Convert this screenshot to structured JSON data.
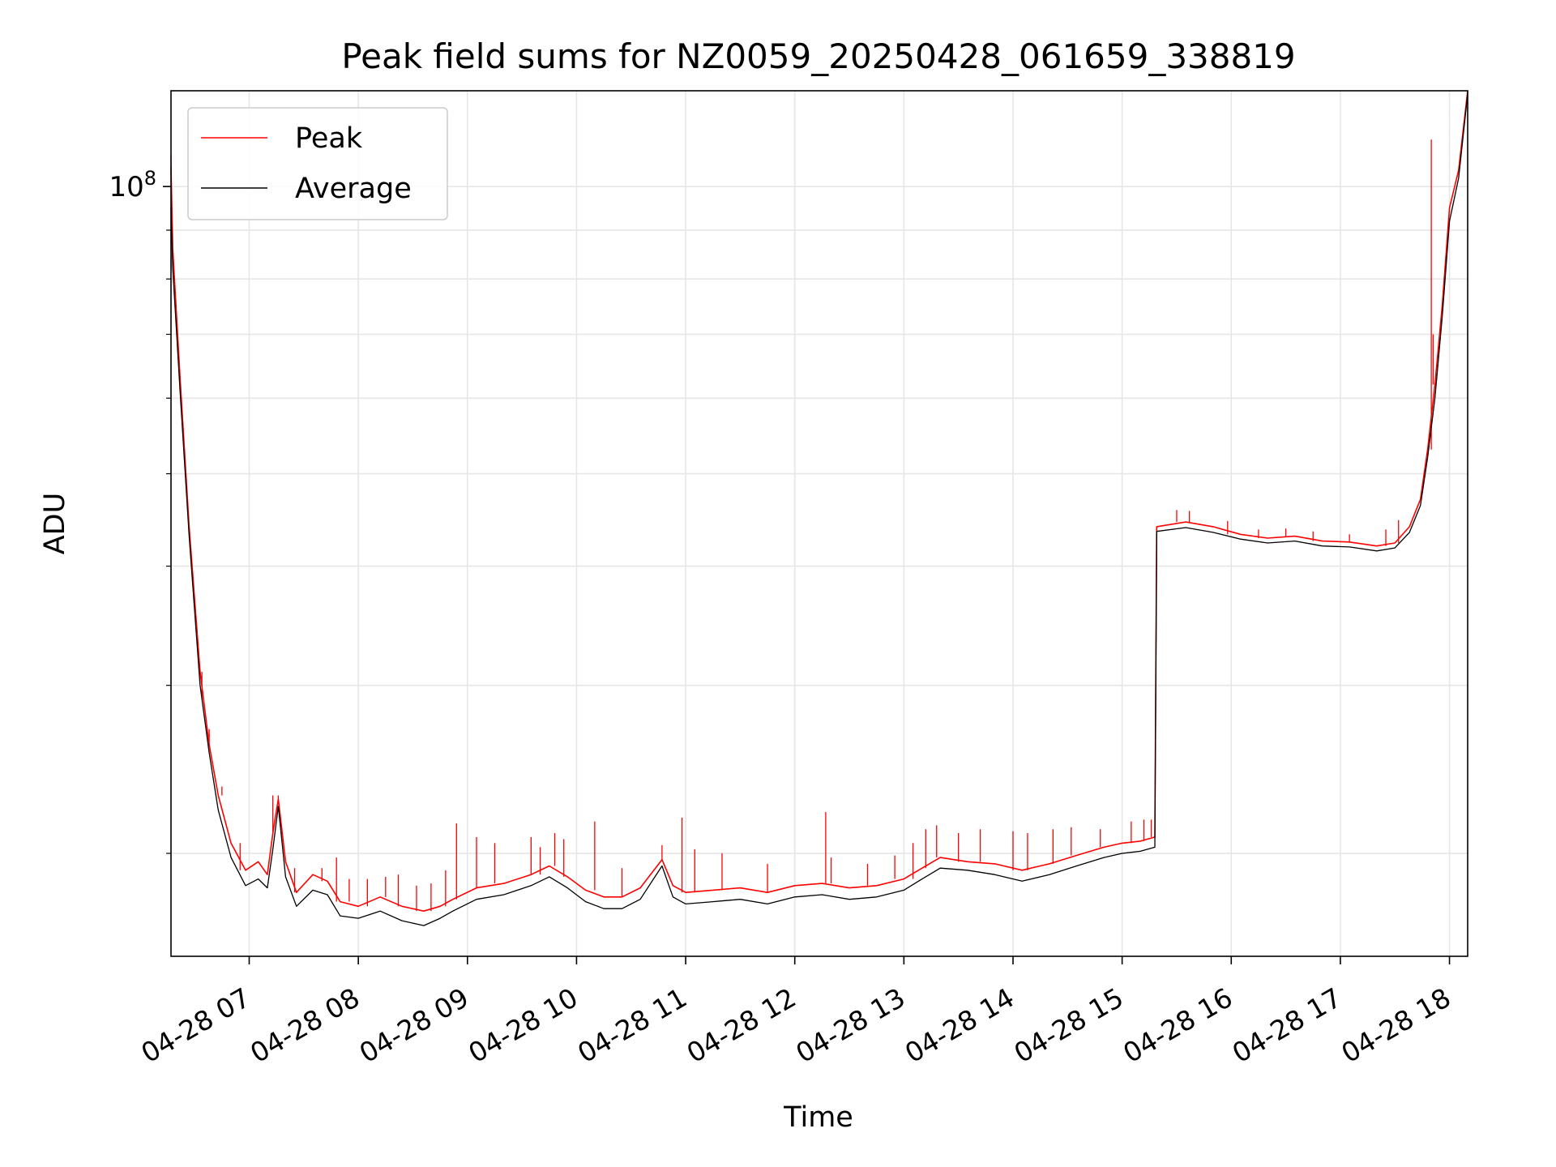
{
  "chart_data": {
    "type": "line",
    "title": "Peak field sums for NZ0059_20250428_061659_338819",
    "xlabel": "Time",
    "ylabel": "ADU",
    "y_scale": "log",
    "ylim": [
      15600000,
      126000000
    ],
    "xlim": [
      "2025-04-28 06:17",
      "2025-04-28 18:10"
    ],
    "x_ticks": [
      "04-28 07",
      "04-28 08",
      "04-28 09",
      "04-28 10",
      "04-28 11",
      "04-28 12",
      "04-28 13",
      "04-28 14",
      "04-28 15",
      "04-28 16",
      "04-28 17",
      "04-28 18"
    ],
    "y_major_tick_label": "10^8",
    "grid": true,
    "legend_position": "upper left",
    "series": [
      {
        "name": "Peak",
        "color": "#ff0000",
        "points": [
          [
            "06:17",
            105000000
          ],
          [
            "06:18",
            86000000
          ],
          [
            "06:22",
            63000000
          ],
          [
            "06:27",
            44000000
          ],
          [
            "06:33",
            31000000
          ],
          [
            "06:38",
            26000000
          ],
          [
            "06:43",
            23000000
          ],
          [
            "06:50",
            20500000
          ],
          [
            "06:58",
            19200000
          ],
          [
            "07:05",
            19600000
          ],
          [
            "07:10",
            19000000
          ],
          [
            "07:13",
            21000000
          ],
          [
            "07:16",
            22800000
          ],
          [
            "07:20",
            19600000
          ],
          [
            "07:26",
            18200000
          ],
          [
            "07:35",
            19000000
          ],
          [
            "07:43",
            18700000
          ],
          [
            "07:50",
            17800000
          ],
          [
            "08:00",
            17600000
          ],
          [
            "08:12",
            18000000
          ],
          [
            "08:24",
            17600000
          ],
          [
            "08:36",
            17400000
          ],
          [
            "08:45",
            17600000
          ],
          [
            "08:52",
            17900000
          ],
          [
            "09:05",
            18400000
          ],
          [
            "09:20",
            18600000
          ],
          [
            "09:35",
            19000000
          ],
          [
            "09:45",
            19400000
          ],
          [
            "09:55",
            18900000
          ],
          [
            "10:05",
            18300000
          ],
          [
            "10:15",
            18000000
          ],
          [
            "10:25",
            18000000
          ],
          [
            "10:35",
            18400000
          ],
          [
            "10:47",
            19700000
          ],
          [
            "10:53",
            18500000
          ],
          [
            "11:00",
            18200000
          ],
          [
            "11:15",
            18300000
          ],
          [
            "11:30",
            18400000
          ],
          [
            "11:45",
            18200000
          ],
          [
            "12:00",
            18500000
          ],
          [
            "12:15",
            18600000
          ],
          [
            "12:30",
            18400000
          ],
          [
            "12:45",
            18500000
          ],
          [
            "13:00",
            18800000
          ],
          [
            "13:10",
            19300000
          ],
          [
            "13:20",
            19800000
          ],
          [
            "13:35",
            19600000
          ],
          [
            "13:50",
            19500000
          ],
          [
            "14:05",
            19200000
          ],
          [
            "14:20",
            19500000
          ],
          [
            "14:35",
            19900000
          ],
          [
            "14:50",
            20300000
          ],
          [
            "15:00",
            20500000
          ],
          [
            "15:10",
            20600000
          ],
          [
            "15:18",
            20800000
          ],
          [
            "15:19",
            44000000
          ],
          [
            "15:35",
            44500000
          ],
          [
            "15:50",
            44000000
          ],
          [
            "16:05",
            43200000
          ],
          [
            "16:20",
            42800000
          ],
          [
            "16:35",
            43000000
          ],
          [
            "16:50",
            42500000
          ],
          [
            "17:05",
            42400000
          ],
          [
            "17:20",
            42000000
          ],
          [
            "17:30",
            42300000
          ],
          [
            "17:38",
            44000000
          ],
          [
            "17:44",
            47000000
          ],
          [
            "17:48",
            53000000
          ],
          [
            "17:52",
            62000000
          ],
          [
            "17:56",
            75000000
          ],
          [
            "18:00",
            95000000
          ],
          [
            "18:05",
            104000000
          ],
          [
            "18:10",
            126000000
          ]
        ],
        "spikes": [
          [
            "06:17",
            108000000
          ],
          [
            "06:34",
            29000000
          ],
          [
            "06:38",
            27000000
          ],
          [
            "06:45",
            23500000
          ],
          [
            "06:55",
            20500000
          ],
          [
            "07:13",
            23000000
          ],
          [
            "07:16",
            23000000
          ],
          [
            "07:25",
            19300000
          ],
          [
            "07:40",
            19300000
          ],
          [
            "07:48",
            19800000
          ],
          [
            "07:55",
            18800000
          ],
          [
            "08:05",
            18800000
          ],
          [
            "08:15",
            18900000
          ],
          [
            "08:22",
            19000000
          ],
          [
            "08:32",
            18500000
          ],
          [
            "08:40",
            18600000
          ],
          [
            "08:48",
            19200000
          ],
          [
            "08:54",
            21500000
          ],
          [
            "09:05",
            20800000
          ],
          [
            "09:15",
            20500000
          ],
          [
            "09:35",
            20800000
          ],
          [
            "09:40",
            20300000
          ],
          [
            "09:48",
            21000000
          ],
          [
            "09:53",
            20700000
          ],
          [
            "10:10",
            21600000
          ],
          [
            "10:25",
            19300000
          ],
          [
            "10:47",
            20400000
          ],
          [
            "10:58",
            21800000
          ],
          [
            "11:05",
            20200000
          ],
          [
            "11:20",
            20000000
          ],
          [
            "11:45",
            19500000
          ],
          [
            "12:17",
            22100000
          ],
          [
            "12:20",
            19800000
          ],
          [
            "12:40",
            19500000
          ],
          [
            "12:55",
            19900000
          ],
          [
            "13:05",
            20500000
          ],
          [
            "13:12",
            21200000
          ],
          [
            "13:18",
            21400000
          ],
          [
            "13:30",
            21000000
          ],
          [
            "13:42",
            21200000
          ],
          [
            "14:00",
            21100000
          ],
          [
            "14:08",
            21000000
          ],
          [
            "14:22",
            21200000
          ],
          [
            "14:32",
            21300000
          ],
          [
            "14:48",
            21200000
          ],
          [
            "15:05",
            21600000
          ],
          [
            "15:12",
            21700000
          ],
          [
            "15:16",
            21700000
          ],
          [
            "15:30",
            45800000
          ],
          [
            "15:37",
            45700000
          ],
          [
            "15:58",
            44600000
          ],
          [
            "16:15",
            43700000
          ],
          [
            "16:30",
            43800000
          ],
          [
            "16:45",
            43500000
          ],
          [
            "17:05",
            43200000
          ],
          [
            "17:25",
            43700000
          ],
          [
            "17:32",
            44700000
          ],
          [
            "17:50",
            112000000
          ],
          [
            "17:51",
            70000000
          ]
        ]
      },
      {
        "name": "Average",
        "color": "#000000",
        "points": [
          [
            "06:17",
            95000000
          ],
          [
            "06:18",
            82000000
          ],
          [
            "06:22",
            61000000
          ],
          [
            "06:27",
            43000000
          ],
          [
            "06:33",
            30000000
          ],
          [
            "06:38",
            25500000
          ],
          [
            "06:43",
            22200000
          ],
          [
            "06:50",
            19800000
          ],
          [
            "06:58",
            18500000
          ],
          [
            "07:05",
            18800000
          ],
          [
            "07:10",
            18400000
          ],
          [
            "07:13",
            20200000
          ],
          [
            "07:16",
            22400000
          ],
          [
            "07:20",
            18900000
          ],
          [
            "07:26",
            17600000
          ],
          [
            "07:35",
            18300000
          ],
          [
            "07:43",
            18100000
          ],
          [
            "07:50",
            17200000
          ],
          [
            "08:00",
            17100000
          ],
          [
            "08:12",
            17400000
          ],
          [
            "08:24",
            17000000
          ],
          [
            "08:36",
            16800000
          ],
          [
            "08:45",
            17100000
          ],
          [
            "08:52",
            17400000
          ],
          [
            "09:05",
            17900000
          ],
          [
            "09:20",
            18100000
          ],
          [
            "09:35",
            18500000
          ],
          [
            "09:45",
            18900000
          ],
          [
            "09:55",
            18400000
          ],
          [
            "10:05",
            17800000
          ],
          [
            "10:15",
            17500000
          ],
          [
            "10:25",
            17500000
          ],
          [
            "10:35",
            17900000
          ],
          [
            "10:47",
            19400000
          ],
          [
            "10:53",
            18000000
          ],
          [
            "11:00",
            17700000
          ],
          [
            "11:15",
            17800000
          ],
          [
            "11:30",
            17900000
          ],
          [
            "11:45",
            17700000
          ],
          [
            "12:00",
            18000000
          ],
          [
            "12:15",
            18100000
          ],
          [
            "12:30",
            17900000
          ],
          [
            "12:45",
            18000000
          ],
          [
            "13:00",
            18300000
          ],
          [
            "13:10",
            18800000
          ],
          [
            "13:20",
            19300000
          ],
          [
            "13:35",
            19200000
          ],
          [
            "13:50",
            19000000
          ],
          [
            "14:05",
            18700000
          ],
          [
            "14:20",
            19000000
          ],
          [
            "14:35",
            19400000
          ],
          [
            "14:50",
            19800000
          ],
          [
            "15:00",
            20000000
          ],
          [
            "15:10",
            20100000
          ],
          [
            "15:18",
            20300000
          ],
          [
            "15:19",
            43500000
          ],
          [
            "15:35",
            43900000
          ],
          [
            "15:50",
            43400000
          ],
          [
            "16:05",
            42700000
          ],
          [
            "16:20",
            42300000
          ],
          [
            "16:35",
            42500000
          ],
          [
            "16:50",
            42000000
          ],
          [
            "17:05",
            41900000
          ],
          [
            "17:20",
            41500000
          ],
          [
            "17:30",
            41800000
          ],
          [
            "17:38",
            43400000
          ],
          [
            "17:44",
            46300000
          ],
          [
            "17:48",
            52000000
          ],
          [
            "17:52",
            60000000
          ],
          [
            "17:56",
            73000000
          ],
          [
            "18:00",
            92000000
          ],
          [
            "18:05",
            102000000
          ],
          [
            "18:10",
            125000000
          ]
        ]
      }
    ]
  }
}
